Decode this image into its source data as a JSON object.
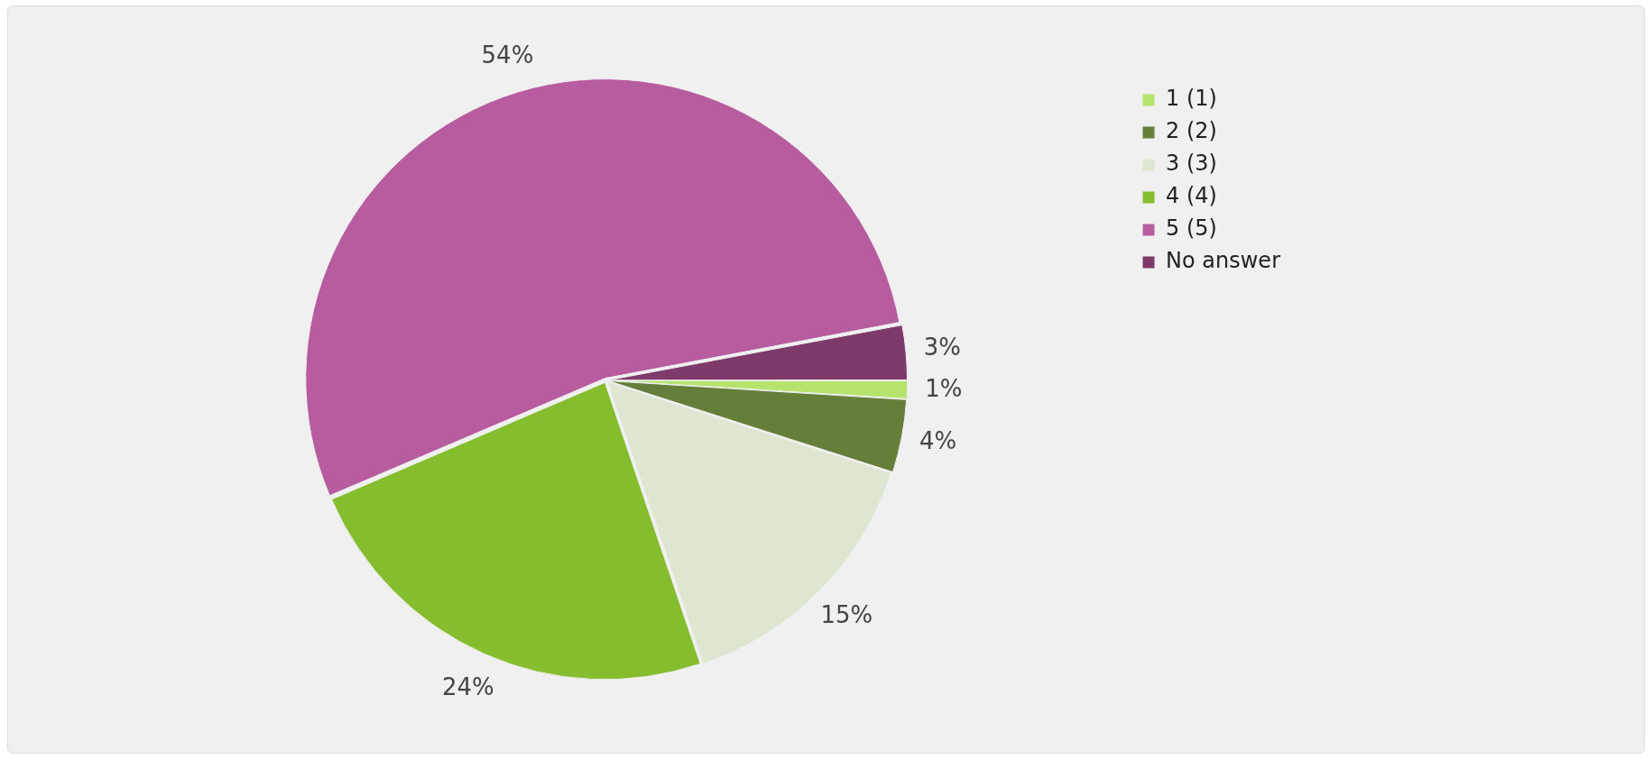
{
  "chart_data": {
    "type": "pie",
    "categories": [
      "1 (1)",
      "2 (2)",
      "3 (3)",
      "4 (4)",
      "5 (5)",
      "No answer"
    ],
    "values": [
      1,
      4,
      15,
      24,
      54,
      3
    ],
    "value_labels": [
      "1%",
      "4%",
      "15%",
      "24%",
      "54%",
      "3%"
    ],
    "colors": [
      "#b5e36b",
      "#657f3a",
      "#dde6d0",
      "#86bd2e",
      "#b85ca0",
      "#7d3a6a"
    ],
    "legend": "top right"
  }
}
